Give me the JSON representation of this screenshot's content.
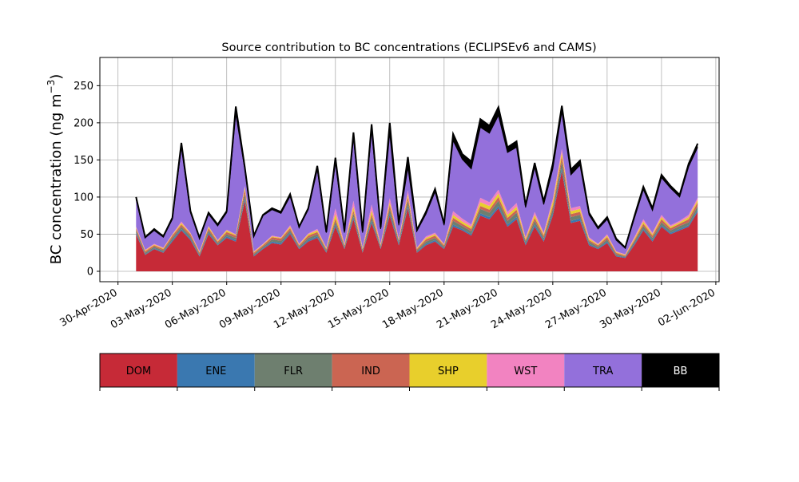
{
  "chart_data": {
    "type": "area",
    "stacked": true,
    "title": "Source contribution to BC concentrations (ECLIPSEv6 and CAMS)",
    "ylabel_main": "BC concentration (ng m",
    "ylabel_sup": "−3",
    "ylabel_close": ")",
    "xlabel": "",
    "ylim": [
      -14,
      288
    ],
    "yticks": [
      0,
      50,
      100,
      150,
      200,
      250
    ],
    "x_range": [
      "2020-04-29",
      "2020-06-02"
    ],
    "xticks": [
      {
        "date": "2020-04-30",
        "label": "30-Apr-2020"
      },
      {
        "date": "2020-05-03",
        "label": "03-May-2020"
      },
      {
        "date": "2020-05-06",
        "label": "06-May-2020"
      },
      {
        "date": "2020-05-09",
        "label": "09-May-2020"
      },
      {
        "date": "2020-05-12",
        "label": "12-May-2020"
      },
      {
        "date": "2020-05-15",
        "label": "15-May-2020"
      },
      {
        "date": "2020-05-18",
        "label": "18-May-2020"
      },
      {
        "date": "2020-05-21",
        "label": "21-May-2020"
      },
      {
        "date": "2020-05-24",
        "label": "24-May-2020"
      },
      {
        "date": "2020-05-27",
        "label": "27-May-2020"
      },
      {
        "date": "2020-05-30",
        "label": "30-May-2020"
      },
      {
        "date": "2020-06-02",
        "label": "02-Jun-2020"
      }
    ],
    "grid": true,
    "legend_position": "bottom",
    "x": [
      "2020-05-01",
      "2020-05-01 12:00",
      "2020-05-02",
      "2020-05-02 12:00",
      "2020-05-03",
      "2020-05-03 12:00",
      "2020-05-04",
      "2020-05-04 12:00",
      "2020-05-05",
      "2020-05-05 12:00",
      "2020-05-06",
      "2020-05-06 12:00",
      "2020-05-07",
      "2020-05-07 12:00",
      "2020-05-08",
      "2020-05-08 12:00",
      "2020-05-09",
      "2020-05-09 12:00",
      "2020-05-10",
      "2020-05-10 12:00",
      "2020-05-11",
      "2020-05-11 12:00",
      "2020-05-12",
      "2020-05-12 12:00",
      "2020-05-13",
      "2020-05-13 12:00",
      "2020-05-14",
      "2020-05-14 12:00",
      "2020-05-15",
      "2020-05-15 12:00",
      "2020-05-16",
      "2020-05-16 12:00",
      "2020-05-17",
      "2020-05-17 12:00",
      "2020-05-18",
      "2020-05-18 12:00",
      "2020-05-19",
      "2020-05-19 12:00",
      "2020-05-20",
      "2020-05-20 12:00",
      "2020-05-21",
      "2020-05-21 12:00",
      "2020-05-22",
      "2020-05-22 12:00",
      "2020-05-23",
      "2020-05-23 12:00",
      "2020-05-24",
      "2020-05-24 12:00",
      "2020-05-25",
      "2020-05-25 12:00",
      "2020-05-26",
      "2020-05-26 12:00",
      "2020-05-27",
      "2020-05-27 12:00",
      "2020-05-28",
      "2020-05-28 12:00",
      "2020-05-29",
      "2020-05-29 12:00",
      "2020-05-30",
      "2020-05-30 12:00",
      "2020-05-31",
      "2020-05-31 12:00",
      "2020-06-01"
    ],
    "series": [
      {
        "name": "DOM",
        "color": "#c62a37",
        "values": [
          50,
          22,
          30,
          25,
          40,
          55,
          42,
          20,
          50,
          35,
          45,
          40,
          95,
          20,
          30,
          38,
          36,
          50,
          30,
          40,
          45,
          25,
          60,
          30,
          70,
          25,
          65,
          30,
          75,
          35,
          85,
          25,
          35,
          40,
          30,
          60,
          55,
          48,
          75,
          70,
          85,
          60,
          70,
          35,
          60,
          40,
          75,
          135,
          65,
          68,
          35,
          30,
          38,
          20,
          18,
          35,
          55,
          40,
          60,
          50,
          55,
          60,
          80
        ]
      },
      {
        "name": "ENE",
        "color": "#3a78b0",
        "values": [
          2,
          1,
          1,
          1,
          2,
          2,
          2,
          1,
          2,
          1,
          2,
          2,
          3,
          1,
          1,
          2,
          2,
          2,
          1,
          2,
          2,
          1,
          3,
          1,
          3,
          1,
          3,
          1,
          3,
          2,
          3,
          1,
          2,
          2,
          1,
          3,
          2,
          2,
          3,
          3,
          3,
          3,
          3,
          2,
          3,
          2,
          3,
          4,
          3,
          3,
          2,
          1,
          2,
          1,
          1,
          2,
          2,
          2,
          2,
          2,
          2,
          2,
          3
        ]
      },
      {
        "name": "FLR",
        "color": "#6e7f6f",
        "values": [
          3,
          2,
          2,
          2,
          3,
          3,
          3,
          2,
          3,
          2,
          3,
          3,
          6,
          2,
          2,
          3,
          3,
          3,
          2,
          3,
          3,
          2,
          4,
          2,
          5,
          2,
          5,
          2,
          6,
          3,
          7,
          2,
          3,
          3,
          2,
          5,
          4,
          4,
          6,
          6,
          7,
          5,
          6,
          3,
          5,
          3,
          6,
          9,
          5,
          5,
          3,
          2,
          3,
          2,
          1,
          3,
          4,
          3,
          4,
          3,
          4,
          4,
          5
        ]
      },
      {
        "name": "IND",
        "color": "#cb6552",
        "values": [
          3,
          2,
          2,
          2,
          3,
          3,
          3,
          2,
          3,
          2,
          3,
          3,
          6,
          2,
          2,
          3,
          3,
          3,
          2,
          3,
          3,
          2,
          4,
          2,
          4,
          2,
          4,
          2,
          5,
          2,
          5,
          2,
          3,
          3,
          2,
          4,
          3,
          3,
          4,
          4,
          5,
          4,
          4,
          2,
          4,
          3,
          4,
          7,
          4,
          4,
          2,
          2,
          3,
          2,
          1,
          2,
          3,
          3,
          4,
          3,
          3,
          4,
          5
        ]
      },
      {
        "name": "SHP",
        "color": "#e8cf2c",
        "values": [
          1,
          1,
          1,
          1,
          1,
          2,
          1,
          1,
          2,
          1,
          2,
          1,
          3,
          1,
          1,
          1,
          1,
          2,
          1,
          2,
          2,
          1,
          6,
          1,
          5,
          1,
          5,
          1,
          4,
          1,
          4,
          1,
          2,
          2,
          1,
          4,
          3,
          3,
          5,
          5,
          5,
          4,
          4,
          2,
          4,
          2,
          6,
          5,
          4,
          4,
          2,
          1,
          2,
          1,
          1,
          2,
          3,
          2,
          3,
          2,
          2,
          3,
          3
        ]
      },
      {
        "name": "WST",
        "color": "#f283c1",
        "values": [
          1,
          1,
          1,
          1,
          1,
          2,
          1,
          1,
          1,
          1,
          1,
          1,
          2,
          1,
          1,
          1,
          1,
          2,
          1,
          1,
          2,
          1,
          8,
          1,
          8,
          1,
          8,
          1,
          6,
          1,
          5,
          1,
          2,
          2,
          1,
          5,
          4,
          3,
          6,
          5,
          5,
          4,
          5,
          2,
          4,
          2,
          4,
          5,
          4,
          4,
          2,
          1,
          2,
          1,
          1,
          2,
          3,
          2,
          3,
          2,
          2,
          3,
          3
        ]
      },
      {
        "name": "TRA",
        "color": "#9370db",
        "values": [
          37,
          16,
          18,
          14,
          20,
          100,
          27,
          17,
          16,
          19,
          23,
          162,
          22,
          20,
          38,
          35,
          32,
          39,
          22,
          32,
          80,
          20,
          61,
          15,
          85,
          20,
          100,
          20,
          87,
          18,
          31,
          22,
          30,
          55,
          25,
          95,
          80,
          75,
          95,
          93,
          100,
          80,
          75,
          40,
          60,
          38,
          40,
          50,
          45,
          55,
          30,
          20,
          20,
          15,
          8,
          25,
          40,
          30,
          50,
          50,
          32,
          65,
          68
        ]
      },
      {
        "name": "BB",
        "color": "#000000",
        "values": [
          3,
          1,
          2,
          1,
          2,
          6,
          2,
          1,
          2,
          2,
          2,
          10,
          3,
          1,
          1,
          2,
          2,
          3,
          1,
          2,
          5,
          1,
          7,
          2,
          7,
          2,
          8,
          2,
          14,
          3,
          14,
          2,
          3,
          4,
          2,
          9,
          7,
          10,
          11,
          10,
          11,
          7,
          8,
          3,
          6,
          4,
          7,
          8,
          7,
          6,
          3,
          2,
          3,
          2,
          1,
          3,
          4,
          3,
          4,
          3,
          3,
          4,
          5
        ]
      }
    ]
  }
}
